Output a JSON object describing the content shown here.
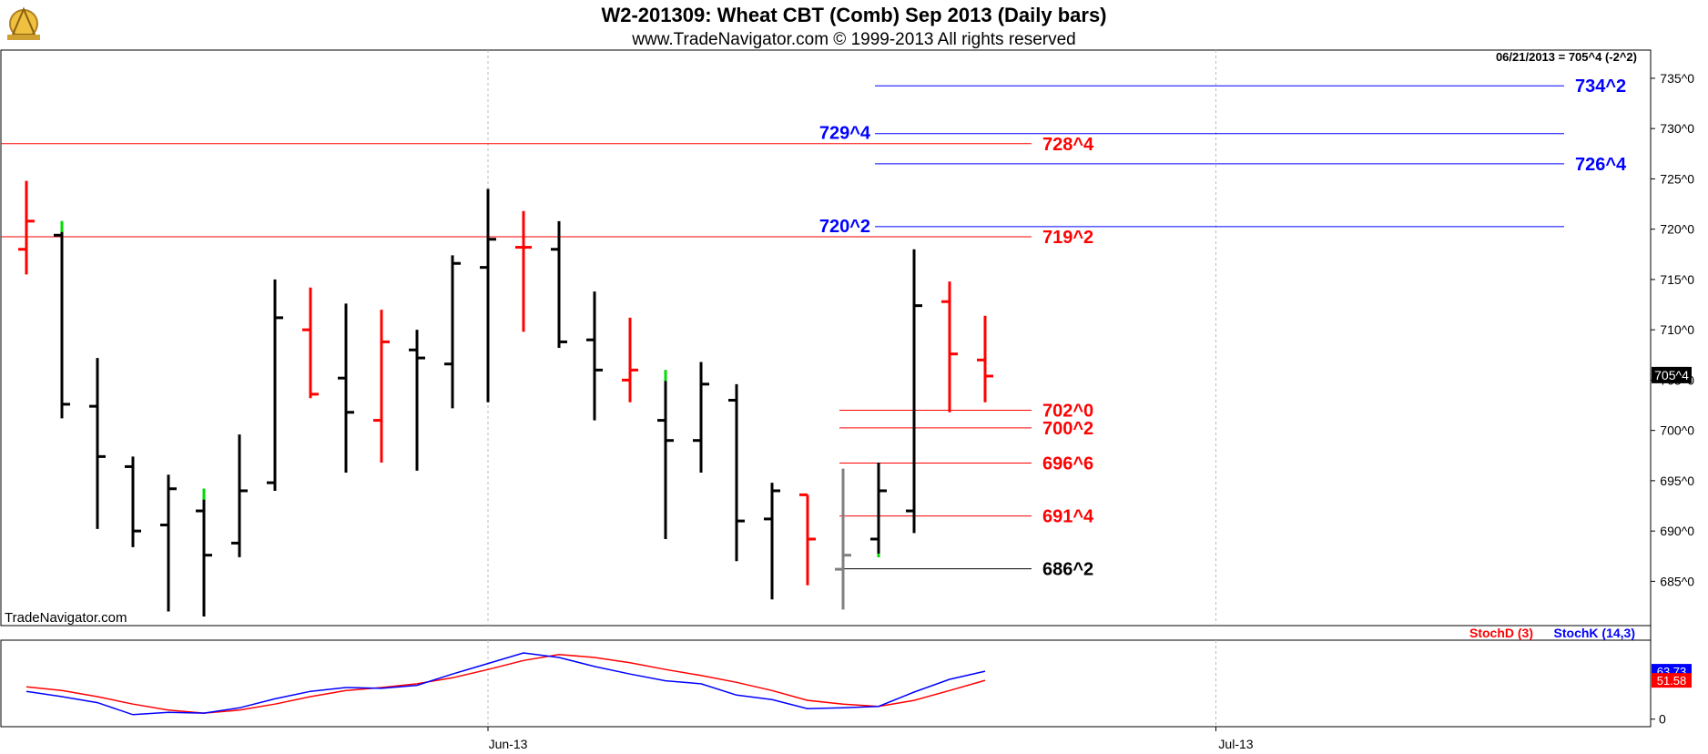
{
  "header": {
    "title": "W2-201309:  Wheat CBT (Comb) Sep 2013  (Daily bars)",
    "subtitle": "www.TradeNavigator.com © 1999-2013 All rights reserved",
    "readout": "06/21/2013 = 705^4 (-2^2)",
    "watermark": "TradeNavigator.com",
    "logo_icon": "sextant-logo-icon"
  },
  "chart_data": [
    {
      "type": "ohlc",
      "title": "W2-201309:  Wheat CBT (Comb) Sep 2013  (Daily bars)",
      "ylim": [
        680.6,
        737.8
      ],
      "y_ticks": [
        685,
        690,
        695,
        700,
        705,
        710,
        715,
        720,
        725,
        730,
        735
      ],
      "y_tick_labels": [
        "685^0",
        "690^0",
        "695^0",
        "700^0",
        "705^0",
        "710^0",
        "715^0",
        "720^0",
        "725^0",
        "730^0",
        "735^0"
      ],
      "x_tick_labels": [
        {
          "label": "Jun-13",
          "bar": 13
        },
        {
          "label": "Jul-13",
          "bar": 33.5
        }
      ],
      "last_price_label": "705^4",
      "last_price": 705.5,
      "bar_colors": {
        "down": "#000000",
        "up": "#ff0000",
        "green": "#00dd00",
        "gray": "#808080"
      },
      "bars": [
        {
          "o": 718.0,
          "h": 724.8,
          "l": 715.5,
          "c": 720.8,
          "color": "up"
        },
        {
          "o": 719.4,
          "h": 720.8,
          "l": 701.2,
          "c": 702.6,
          "color": "down",
          "top_accent": "green"
        },
        {
          "o": 702.4,
          "h": 707.2,
          "l": 690.2,
          "c": 697.4,
          "color": "down"
        },
        {
          "o": 696.4,
          "h": 697.4,
          "l": 688.4,
          "c": 690.0,
          "color": "down"
        },
        {
          "o": 690.6,
          "h": 695.6,
          "l": 682.0,
          "c": 694.2,
          "color": "down"
        },
        {
          "o": 692.0,
          "h": 694.2,
          "l": 681.5,
          "c": 687.6,
          "color": "down",
          "top_accent": "green"
        },
        {
          "o": 688.8,
          "h": 699.6,
          "l": 687.4,
          "c": 694.0,
          "color": "down"
        },
        {
          "o": 694.8,
          "h": 715.0,
          "l": 694.0,
          "c": 711.2,
          "color": "down"
        },
        {
          "o": 710.0,
          "h": 714.2,
          "l": 703.2,
          "c": 703.6,
          "color": "up"
        },
        {
          "o": 705.2,
          "h": 712.6,
          "l": 695.8,
          "c": 701.8,
          "color": "down"
        },
        {
          "o": 701.0,
          "h": 712.0,
          "l": 696.8,
          "c": 708.8,
          "color": "up"
        },
        {
          "o": 708.0,
          "h": 710.0,
          "l": 696.0,
          "c": 707.2,
          "color": "down"
        },
        {
          "o": 706.6,
          "h": 717.4,
          "l": 702.2,
          "c": 716.6,
          "color": "down"
        },
        {
          "o": 716.2,
          "h": 724.0,
          "l": 702.8,
          "c": 719.0,
          "color": "down"
        },
        {
          "o": 718.2,
          "h": 721.8,
          "l": 709.8,
          "c": 718.2,
          "color": "up"
        },
        {
          "o": 718.0,
          "h": 720.8,
          "l": 708.2,
          "c": 708.8,
          "color": "down"
        },
        {
          "o": 709.0,
          "h": 713.8,
          "l": 701.0,
          "c": 706.0,
          "color": "down"
        },
        {
          "o": 705.0,
          "h": 711.2,
          "l": 702.8,
          "c": 706.0,
          "color": "up"
        },
        {
          "o": 701.0,
          "h": 706.0,
          "l": 689.2,
          "c": 699.0,
          "color": "down",
          "top_accent": "green"
        },
        {
          "o": 699.0,
          "h": 706.8,
          "l": 695.8,
          "c": 704.6,
          "color": "down"
        },
        {
          "o": 703.0,
          "h": 704.6,
          "l": 687.0,
          "c": 691.0,
          "color": "down"
        },
        {
          "o": 691.2,
          "h": 694.8,
          "l": 683.2,
          "c": 694.0,
          "color": "down"
        },
        {
          "o": 693.6,
          "h": 693.6,
          "l": 684.6,
          "c": 689.2,
          "color": "up"
        },
        {
          "o": 686.2,
          "h": 696.2,
          "l": 682.2,
          "c": 687.6,
          "color": "gray"
        },
        {
          "o": 689.2,
          "h": 696.8,
          "l": 687.4,
          "c": 694.0,
          "color": "down",
          "bottom_accent": "green"
        },
        {
          "o": 692.0,
          "h": 718.0,
          "l": 689.8,
          "c": 712.4,
          "color": "down"
        },
        {
          "o": 712.8,
          "h": 714.8,
          "l": 701.8,
          "c": 707.6,
          "color": "up"
        },
        {
          "o": 707.0,
          "h": 711.4,
          "l": 702.8,
          "c": 705.4,
          "color": "up"
        }
      ],
      "levels": [
        {
          "label": "734^2",
          "value": 734.25,
          "color": "#0000ff",
          "from_bar": 24,
          "to_bar": 43,
          "label_side": "right"
        },
        {
          "label": "729^4",
          "value": 729.5,
          "color": "#0000ff",
          "from_bar": 24,
          "to_bar": 43,
          "label_side": "left"
        },
        {
          "label": "728^4",
          "value": 728.5,
          "color": "#ff0000",
          "from_bar": -1,
          "to_bar": 28,
          "label_side": "right"
        },
        {
          "label": "726^4",
          "value": 726.5,
          "color": "#0000ff",
          "from_bar": 24,
          "to_bar": 43,
          "label_side": "right"
        },
        {
          "label": "720^2",
          "value": 720.25,
          "color": "#0000ff",
          "from_bar": 24,
          "to_bar": 43,
          "label_side": "left"
        },
        {
          "label": "719^2",
          "value": 719.25,
          "color": "#ff0000",
          "from_bar": -1,
          "to_bar": 28,
          "label_side": "right"
        },
        {
          "label": "702^0",
          "value": 702.0,
          "color": "#ff0000",
          "from_bar": 23,
          "to_bar": 28,
          "label_side": "right"
        },
        {
          "label": "700^2",
          "value": 700.25,
          "color": "#ff0000",
          "from_bar": 23,
          "to_bar": 28,
          "label_side": "right"
        },
        {
          "label": "696^6",
          "value": 696.75,
          "color": "#ff0000",
          "from_bar": 23,
          "to_bar": 28,
          "label_side": "right"
        },
        {
          "label": "691^4",
          "value": 691.5,
          "color": "#ff0000",
          "from_bar": 23,
          "to_bar": 28,
          "label_side": "right"
        },
        {
          "label": "686^2",
          "value": 686.25,
          "color": "#000000",
          "from_bar": 23,
          "to_bar": 28,
          "label_side": "right"
        }
      ]
    },
    {
      "type": "line",
      "legend": [
        "StochD (3)",
        "StochK (14,3)"
      ],
      "ylim": [
        -10,
        105
      ],
      "y_ticks": [
        0
      ],
      "y_tick_labels": [
        "0"
      ],
      "series": [
        {
          "name": "StochD (3)",
          "color": "#ff0000",
          "values": [
            43,
            38,
            30,
            20,
            12,
            8,
            12,
            20,
            30,
            38,
            42,
            47,
            55,
            66,
            78,
            86,
            82,
            75,
            66,
            58,
            49,
            38,
            25,
            20,
            17,
            25,
            38,
            51.58
          ]
        },
        {
          "name": "StochK (14,3)",
          "color": "#0000ff",
          "values": [
            37,
            30,
            22,
            6,
            9,
            8,
            15,
            27,
            37,
            42,
            41,
            45,
            60,
            74,
            88,
            82,
            70,
            60,
            51,
            47,
            32,
            26,
            14,
            15,
            17,
            36,
            53,
            63.73
          ]
        }
      ],
      "value_labels": [
        {
          "label": "63.73",
          "value": 63.73,
          "color": "#0000ff"
        },
        {
          "label": "51.58",
          "value": 51.58,
          "color": "#ff0000"
        }
      ]
    }
  ]
}
